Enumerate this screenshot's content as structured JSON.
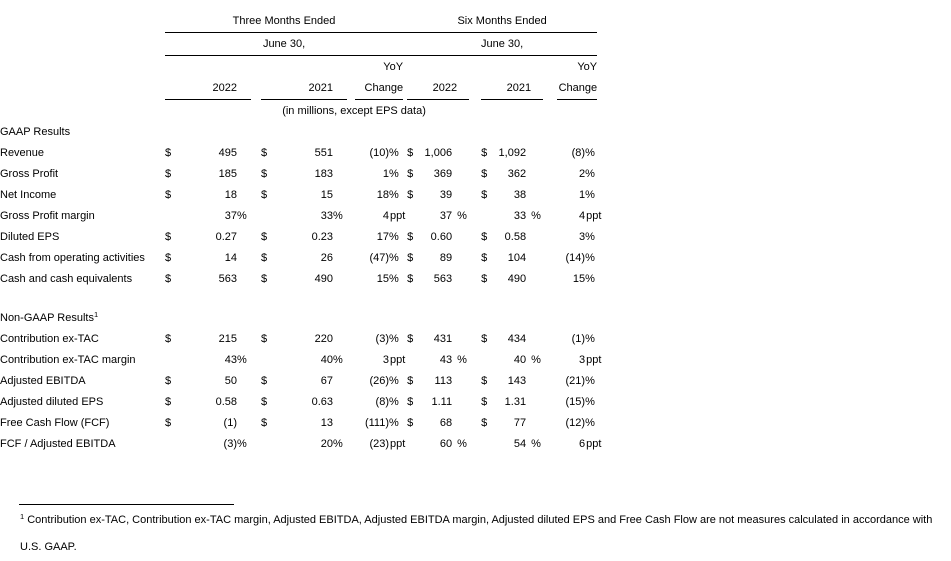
{
  "table": {
    "period_groups": [
      "Three Months Ended",
      "Six Months Ended"
    ],
    "date_subheader": "June 30,",
    "yoy_label": "YoY",
    "column_headers": [
      "2022",
      "2021",
      "Change",
      "2022",
      "2021",
      "Change"
    ],
    "units_note": "(in millions, except EPS data)",
    "sections": [
      {
        "title": "GAAP Results",
        "title_superscript": "",
        "rows": [
          {
            "label": "Revenue",
            "cells": [
              [
                "$",
                "495",
                ""
              ],
              [
                "$",
                "551",
                ""
              ],
              [
                "",
                "(10)",
                "%"
              ],
              [
                "$",
                "1,006",
                ""
              ],
              [
                "$",
                "1,092",
                ""
              ],
              [
                "",
                "(8)",
                "%"
              ]
            ]
          },
          {
            "label": "Gross Profit",
            "cells": [
              [
                "$",
                "185",
                ""
              ],
              [
                "$",
                "183",
                ""
              ],
              [
                "",
                "1",
                "%"
              ],
              [
                "$",
                "369",
                ""
              ],
              [
                "$",
                "362",
                ""
              ],
              [
                "",
                "2",
                "%"
              ]
            ]
          },
          {
            "label": "Net Income",
            "cells": [
              [
                "$",
                "18",
                ""
              ],
              [
                "$",
                "15",
                ""
              ],
              [
                "",
                "18",
                "%"
              ],
              [
                "$",
                "39",
                ""
              ],
              [
                "$",
                "38",
                ""
              ],
              [
                "",
                "1",
                "%"
              ]
            ]
          },
          {
            "label": "Gross Profit margin",
            "cells": [
              [
                "",
                "37",
                "%"
              ],
              [
                "",
                "33",
                "%"
              ],
              [
                "",
                "4",
                "ppt"
              ],
              [
                "",
                "37",
                "%"
              ],
              [
                "",
                "33",
                "%"
              ],
              [
                "",
                "4",
                "ppt"
              ]
            ]
          },
          {
            "label": "Diluted EPS",
            "cells": [
              [
                "$",
                "0.27",
                ""
              ],
              [
                "$",
                "0.23",
                ""
              ],
              [
                "",
                "17",
                "%"
              ],
              [
                "$",
                "0.60",
                ""
              ],
              [
                "$",
                "0.58",
                ""
              ],
              [
                "",
                "3",
                "%"
              ]
            ]
          },
          {
            "label": "Cash from operating activities",
            "cells": [
              [
                "$",
                "14",
                ""
              ],
              [
                "$",
                "26",
                ""
              ],
              [
                "",
                "(47)",
                "%"
              ],
              [
                "$",
                "89",
                ""
              ],
              [
                "$",
                "104",
                ""
              ],
              [
                "",
                "(14)",
                "%"
              ]
            ]
          },
          {
            "label": "Cash and cash equivalents",
            "cells": [
              [
                "$",
                "563",
                ""
              ],
              [
                "$",
                "490",
                ""
              ],
              [
                "",
                "15",
                "%"
              ],
              [
                "$",
                "563",
                ""
              ],
              [
                "$",
                "490",
                ""
              ],
              [
                "",
                "15",
                "%"
              ]
            ]
          }
        ]
      },
      {
        "title": "Non-GAAP Results",
        "title_superscript": "1",
        "rows": [
          {
            "label": "Contribution ex-TAC",
            "cells": [
              [
                "$",
                "215",
                ""
              ],
              [
                "$",
                "220",
                ""
              ],
              [
                "",
                "(3)",
                "%"
              ],
              [
                "$",
                "431",
                ""
              ],
              [
                "$",
                "434",
                ""
              ],
              [
                "",
                "(1)",
                "%"
              ]
            ]
          },
          {
            "label": "Contribution ex-TAC margin",
            "cells": [
              [
                "",
                "43",
                "%"
              ],
              [
                "",
                "40",
                "%"
              ],
              [
                "",
                "3",
                "ppt"
              ],
              [
                "",
                "43",
                "%"
              ],
              [
                "",
                "40",
                "%"
              ],
              [
                "",
                "3",
                "ppt"
              ]
            ]
          },
          {
            "label": "Adjusted EBITDA",
            "cells": [
              [
                "$",
                "50",
                ""
              ],
              [
                "$",
                "67",
                ""
              ],
              [
                "",
                "(26)",
                "%"
              ],
              [
                "$",
                "113",
                ""
              ],
              [
                "$",
                "143",
                ""
              ],
              [
                "",
                "(21)",
                "%"
              ]
            ]
          },
          {
            "label": "Adjusted diluted EPS",
            "cells": [
              [
                "$",
                "0.58",
                ""
              ],
              [
                "$",
                "0.63",
                ""
              ],
              [
                "",
                "(8)",
                "%"
              ],
              [
                "$",
                "1.11",
                ""
              ],
              [
                "$",
                "1.31",
                ""
              ],
              [
                "",
                "(15)",
                "%"
              ]
            ]
          },
          {
            "label": "Free Cash Flow (FCF)",
            "cells": [
              [
                "$",
                "(1)",
                ""
              ],
              [
                "$",
                "13",
                ""
              ],
              [
                "",
                "(111)",
                "%"
              ],
              [
                "$",
                "68",
                ""
              ],
              [
                "$",
                "77",
                ""
              ],
              [
                "",
                "(12)",
                "%"
              ]
            ]
          },
          {
            "label": "FCF / Adjusted EBITDA",
            "cells": [
              [
                "",
                "(3)",
                "%"
              ],
              [
                "",
                "20",
                "%"
              ],
              [
                "",
                "(23)",
                "ppt"
              ],
              [
                "",
                "60",
                "%"
              ],
              [
                "",
                "54",
                "%"
              ],
              [
                "",
                "6",
                "ppt"
              ]
            ]
          }
        ]
      }
    ]
  },
  "footnote": {
    "superscript": "1",
    "text": "Contribution ex-TAC, Contribution ex-TAC margin, Adjusted EBITDA, Adjusted EBITDA margin, Adjusted diluted EPS and Free Cash Flow are not measures calculated in accordance with U.S. GAAP."
  }
}
